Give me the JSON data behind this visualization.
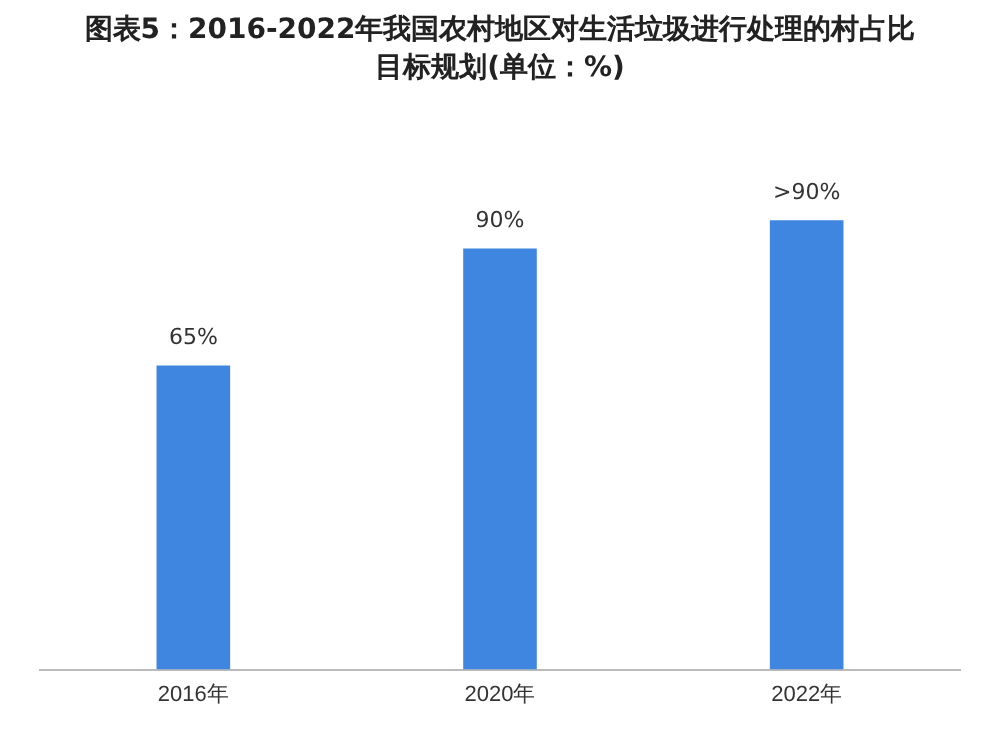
{
  "chart_data": {
    "type": "bar",
    "title": "图表5：2016-2022年我国农村地区对生活垃圾进行处理的村占比目标规划(单位：%)",
    "categories": [
      "2016年",
      "2020年",
      "2022年"
    ],
    "values": [
      65,
      90,
      96
    ],
    "value_labels": [
      "65%",
      "90%",
      ">90%"
    ],
    "color": "#3f86e0",
    "tick_labels": "x",
    "grid": false,
    "legend": false
  }
}
